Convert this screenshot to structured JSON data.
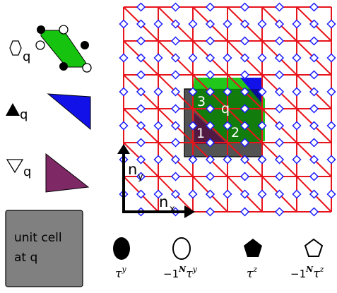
{
  "legend_left": {
    "hexagon_symbol_label": "q",
    "up_triangle_symbol_label": "q",
    "down_triangle_symbol_label": "q",
    "unit_cell_label_line1": "unit cell",
    "unit_cell_label_line2": "at q"
  },
  "lattice": {
    "plaquette_label": "q",
    "site_labels": [
      "1",
      "2",
      "3"
    ],
    "axis_x_label": "n",
    "axis_x_sub": "x",
    "axis_y_label": "n",
    "axis_y_sub": "y"
  },
  "legend_bottom": [
    {
      "shape": "filled-circle",
      "prefix": "",
      "symbol": "τ",
      "sup": "y"
    },
    {
      "shape": "open-circle",
      "prefix": "−1",
      "prefix_sup": "N",
      "symbol": "τ",
      "sup": "y"
    },
    {
      "shape": "filled-pentagon",
      "prefix": "",
      "symbol": "τ",
      "sup": "z"
    },
    {
      "shape": "open-pentagon",
      "prefix": "−1",
      "prefix_sup": "N",
      "symbol": "τ",
      "sup": "z"
    }
  ],
  "colors": {
    "lattice_edge": "#e8141c",
    "site_fill": "#ffffff",
    "site_stroke": "#1a1aff",
    "hexagon_fill": "#16c40f",
    "up_triangle_fill": "#1212e8",
    "down_triangle_fill": "#7f2866",
    "unit_cell_fill": "#808080",
    "axis": "#000000"
  }
}
